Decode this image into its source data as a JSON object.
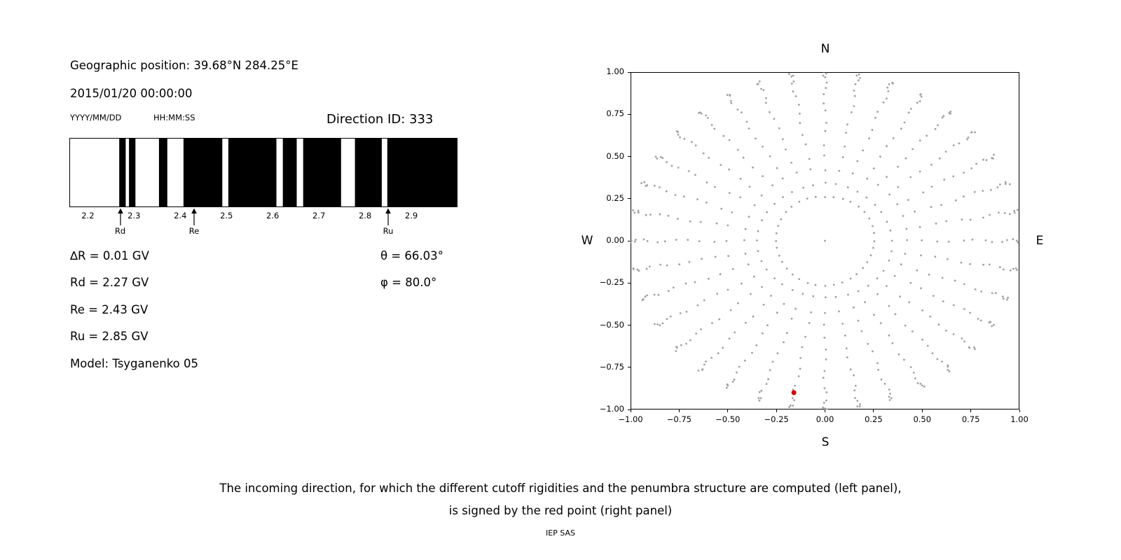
{
  "meta": {
    "geo_position": "Geographic position: 39.68°N 284.25°E",
    "datetime": "2015/01/20 00:00:00",
    "date_format": "YYYY/MM/DD",
    "time_format": "HH:MM:SS",
    "direction_id": "Direction ID: 333",
    "params_left": [
      "∆R = 0.01 GV",
      "Rd = 2.27 GV",
      "Re = 2.43 GV",
      "Ru = 2.85 GV",
      "Model: Tsyganenko 05"
    ],
    "params_right": [
      "θ = 66.03°",
      "φ = 80.0°"
    ]
  },
  "caption": {
    "line1": "The incoming direction, for which the different cutoff rigidities and the penumbra structure are computed (left panel),",
    "line2": "is signed by the red point (right panel)",
    "credit": "IEP SAS"
  },
  "chart_data": [
    {
      "id": "penumbra-barcode",
      "type": "bar",
      "description": "Penumbra structure of cutoff rigidities; black bands = allowed rigidity windows",
      "x_range_gv": [
        2.16,
        3.0
      ],
      "xtick_values": [
        2.2,
        2.3,
        2.4,
        2.5,
        2.6,
        2.7,
        2.8,
        2.9
      ],
      "xtick_labels": [
        "2.2",
        "2.3",
        "2.4",
        "2.5",
        "2.6",
        "2.7",
        "2.8",
        "2.9"
      ],
      "black_intervals_gv": [
        [
          2.268,
          2.282
        ],
        [
          2.289,
          2.303
        ],
        [
          2.354,
          2.372
        ],
        [
          2.407,
          2.491
        ],
        [
          2.504,
          2.608
        ],
        [
          2.622,
          2.652
        ],
        [
          2.666,
          2.748
        ],
        [
          2.778,
          2.836
        ],
        [
          2.848,
          3.0
        ]
      ],
      "markers": [
        {
          "label": "Rd",
          "value_gv": 2.27
        },
        {
          "label": "Re",
          "value_gv": 2.43
        },
        {
          "label": "Ru",
          "value_gv": 2.85
        }
      ],
      "bar_color": "#000000",
      "background_color": "#ffffff"
    },
    {
      "id": "direction-map",
      "type": "scatter",
      "xlim": [
        -1.0,
        1.0
      ],
      "ylim": [
        -1.0,
        1.0
      ],
      "xtick_labels": [
        "−1.00",
        "−0.75",
        "−0.50",
        "−0.25",
        "0.00",
        "0.25",
        "0.50",
        "0.75",
        "1.00"
      ],
      "ytick_labels": [
        "1.00",
        "0.75",
        "0.50",
        "0.25",
        "0.00",
        "−0.25",
        "−0.50",
        "−0.75",
        "−1.00"
      ],
      "compass_labels": {
        "top": "N",
        "right": "E",
        "bottom": "S",
        "left": "W"
      },
      "grid": {
        "azimuth_start_deg": 0,
        "azimuth_step_deg": 10,
        "azimuth_count": 36,
        "zenith_deg": [
          15,
          20,
          25,
          30,
          35,
          40,
          45,
          50,
          55,
          60,
          65,
          70,
          75,
          80,
          85,
          90
        ],
        "radius_rule": "sin(zenith)",
        "includes_center_point": true
      },
      "dot_color": "#969696",
      "red_point": {
        "x": -0.16,
        "y": -0.9,
        "color": "#d40000"
      }
    }
  ]
}
